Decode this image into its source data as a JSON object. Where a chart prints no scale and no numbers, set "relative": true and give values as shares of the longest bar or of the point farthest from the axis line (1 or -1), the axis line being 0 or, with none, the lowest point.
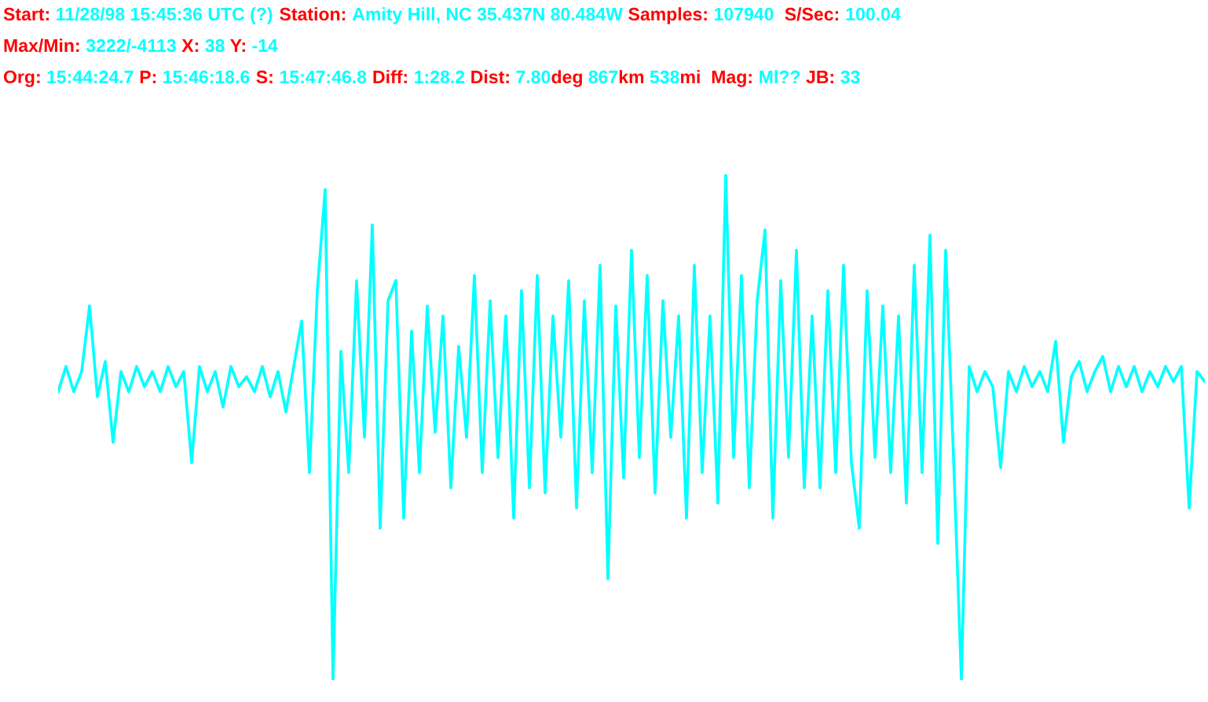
{
  "chart_data": {
    "type": "line",
    "relative": true,
    "categories": [
      null,
      null,
      null,
      null,
      null,
      null,
      null,
      null,
      null,
      null,
      null,
      null,
      null,
      null,
      null,
      null,
      null,
      null,
      null,
      null,
      null,
      null,
      null,
      null,
      null,
      null,
      null,
      null,
      null,
      null,
      null,
      null,
      null,
      null,
      null,
      null,
      null,
      null,
      null,
      null,
      null,
      null,
      null,
      null,
      null,
      null,
      null,
      null,
      null,
      null,
      null,
      null,
      null,
      null,
      null,
      null,
      null,
      null,
      null,
      null,
      null,
      null,
      null,
      null,
      null,
      null,
      null,
      null,
      null,
      null,
      null,
      null,
      null,
      null,
      null,
      null,
      null,
      null,
      null,
      null,
      null,
      null,
      null,
      null,
      null,
      null,
      null,
      null,
      null,
      null,
      null,
      null,
      null,
      null,
      null,
      null,
      null,
      null,
      null,
      null,
      null,
      null,
      null,
      null,
      null,
      null,
      null,
      null,
      null,
      null,
      null,
      null,
      null,
      null,
      null,
      null,
      null,
      null,
      null,
      null,
      null,
      null,
      null,
      null,
      null,
      null,
      null,
      null,
      null,
      null,
      null,
      null,
      null,
      null,
      null,
      null,
      null,
      null,
      null,
      null,
      null,
      null,
      null,
      null,
      null,
      null,
      null
    ],
    "series": [
      {
        "color": "#00ffff",
        "values": [
          0.57,
          0.62,
          0.57,
          0.61,
          0.74,
          0.56,
          0.63,
          0.47,
          0.61,
          0.57,
          0.62,
          0.58,
          0.61,
          0.57,
          0.62,
          0.58,
          0.61,
          0.43,
          0.62,
          0.57,
          0.61,
          0.54,
          0.62,
          0.58,
          0.6,
          0.57,
          0.62,
          0.56,
          0.61,
          0.53,
          0.62,
          0.71,
          0.41,
          0.77,
          0.97,
          0,
          0.65,
          0.41,
          0.79,
          0.48,
          0.9,
          0.3,
          0.75,
          0.79,
          0.32,
          0.69,
          0.41,
          0.74,
          0.49,
          0.72,
          0.38,
          0.66,
          0.48,
          0.8,
          0.41,
          0.75,
          0.44,
          0.72,
          0.32,
          0.77,
          0.38,
          0.8,
          0.37,
          0.72,
          0.48,
          0.79,
          0.34,
          0.75,
          0.41,
          0.82,
          0.2,
          0.74,
          0.4,
          0.85,
          0.44,
          0.8,
          0.37,
          0.75,
          0.48,
          0.72,
          0.32,
          0.82,
          0.41,
          0.72,
          0.35,
          1,
          0.44,
          0.8,
          0.38,
          0.75,
          0.89,
          0.32,
          0.79,
          0.44,
          0.85,
          0.38,
          0.72,
          0.38,
          0.77,
          0.41,
          0.82,
          0.43,
          0.3,
          0.77,
          0.44,
          0.74,
          0.41,
          0.72,
          0.35,
          0.82,
          0.41,
          0.88,
          0.27,
          0.85,
          0.44,
          0,
          0.62,
          0.57,
          0.61,
          0.58,
          0.42,
          0.61,
          0.57,
          0.62,
          0.58,
          0.61,
          0.57,
          0.67,
          0.47,
          0.6,
          0.63,
          0.57,
          0.61,
          0.64,
          0.57,
          0.62,
          0.58,
          0.62,
          0.57,
          0.61,
          0.58,
          0.62,
          0.59,
          0.62,
          0.34,
          0.61,
          0.59
        ]
      }
    ],
    "annotations": [
      "Start: ",
      "11/28/98 15:45:36 UTC (?) ",
      "Station: ",
      "Amity Hill, NC 35.437N 80.484W ",
      "Samples: ",
      "107940  ",
      "S/Sec: ",
      "100.04",
      "Max/Min: ",
      "3222/-4113 ",
      "X: ",
      "38 ",
      "Y: ",
      "-14",
      "Org: ",
      "15:44:24.7 ",
      "P: ",
      "15:46:18.6 ",
      "S: ",
      "15:47:46.8 ",
      "Diff: ",
      "1:28.2 ",
      "Dist: ",
      "7.80",
      "deg ",
      "867",
      "km ",
      "538",
      "mi  Mag: ",
      "Ml?? ",
      "JB: ",
      "33"
    ]
  }
}
